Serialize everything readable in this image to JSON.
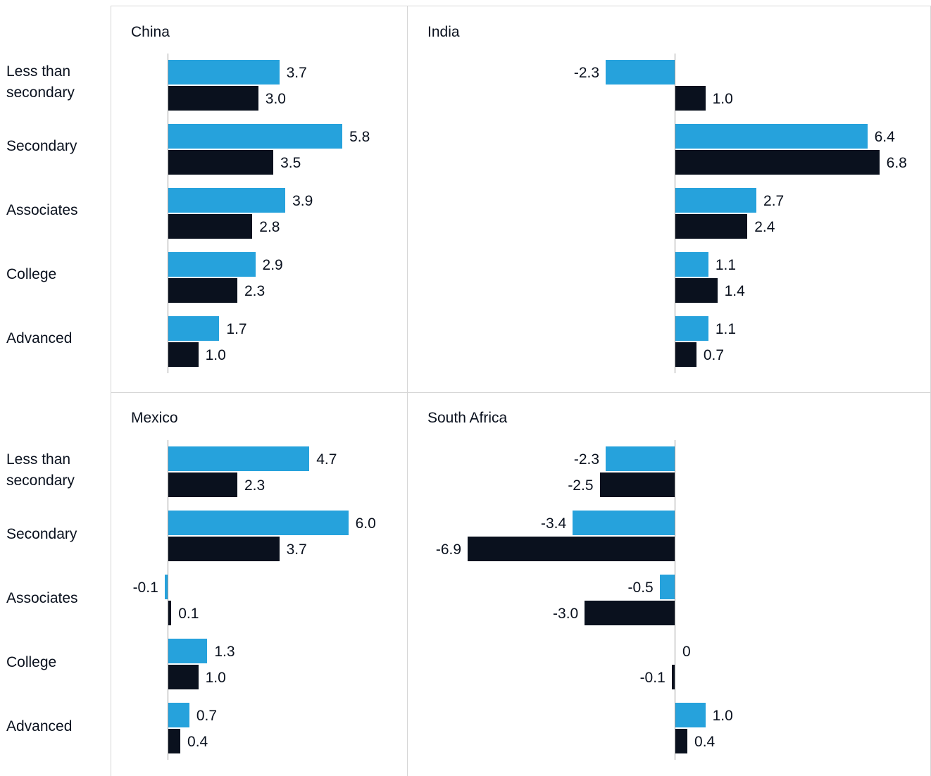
{
  "colors": {
    "series_1": "#26a2dc",
    "series_2": "#0a111e"
  },
  "chart_data": [
    {
      "type": "bar",
      "orientation": "horizontal",
      "title": "China",
      "categories": [
        "Less than secondary",
        "Secondary",
        "Associates",
        "College",
        "Advanced"
      ],
      "series": [
        {
          "values": [
            3.7,
            5.8,
            3.9,
            2.9,
            1.7
          ],
          "labels": [
            "3.7",
            "5.8",
            "3.9",
            "2.9",
            "1.7"
          ]
        },
        {
          "values": [
            3.0,
            3.5,
            2.8,
            2.3,
            1.0
          ],
          "labels": [
            "3.0",
            "3.5",
            "2.8",
            "2.3",
            "1.0"
          ]
        }
      ]
    },
    {
      "type": "bar",
      "orientation": "horizontal",
      "title": "India",
      "categories": [
        "Less than secondary",
        "Secondary",
        "Associates",
        "College",
        "Advanced"
      ],
      "series": [
        {
          "values": [
            -2.3,
            6.4,
            2.7,
            1.1,
            1.1
          ],
          "labels": [
            "-2.3",
            "6.4",
            "2.7",
            "1.1",
            "1.1"
          ]
        },
        {
          "values": [
            1.0,
            6.8,
            2.4,
            1.4,
            0.7
          ],
          "labels": [
            "1.0",
            "6.8",
            "2.4",
            "1.4",
            "0.7"
          ]
        }
      ]
    },
    {
      "type": "bar",
      "orientation": "horizontal",
      "title": "Mexico",
      "categories": [
        "Less than secondary",
        "Secondary",
        "Associates",
        "College",
        "Advanced"
      ],
      "series": [
        {
          "values": [
            4.7,
            6.0,
            -0.1,
            1.3,
            0.7
          ],
          "labels": [
            "4.7",
            "6.0",
            "-0.1",
            "1.3",
            "0.7"
          ]
        },
        {
          "values": [
            2.3,
            3.7,
            0.1,
            1.0,
            0.4
          ],
          "labels": [
            "2.3",
            "3.7",
            "0.1",
            "1.0",
            "0.4"
          ]
        }
      ]
    },
    {
      "type": "bar",
      "orientation": "horizontal",
      "title": "South Africa",
      "categories": [
        "Less than secondary",
        "Secondary",
        "Associates",
        "College",
        "Advanced"
      ],
      "series": [
        {
          "values": [
            -2.3,
            -3.4,
            -0.5,
            0,
            1.0
          ],
          "labels": [
            "-2.3",
            "-3.4",
            "-0.5",
            "0",
            "1.0"
          ]
        },
        {
          "values": [
            -2.5,
            -6.9,
            -3.0,
            -0.1,
            0.4
          ],
          "labels": [
            "-2.5",
            "-6.9",
            "-3.0",
            "-0.1",
            "0.4"
          ]
        }
      ]
    }
  ],
  "row_labels": {
    "top": [
      "Less than\nsecondary",
      "Secondary",
      "Associates",
      "College",
      "Advanced"
    ],
    "bottom": [
      "Less than\nsecondary",
      "Secondary",
      "Associates",
      "College",
      "Advanced"
    ]
  }
}
